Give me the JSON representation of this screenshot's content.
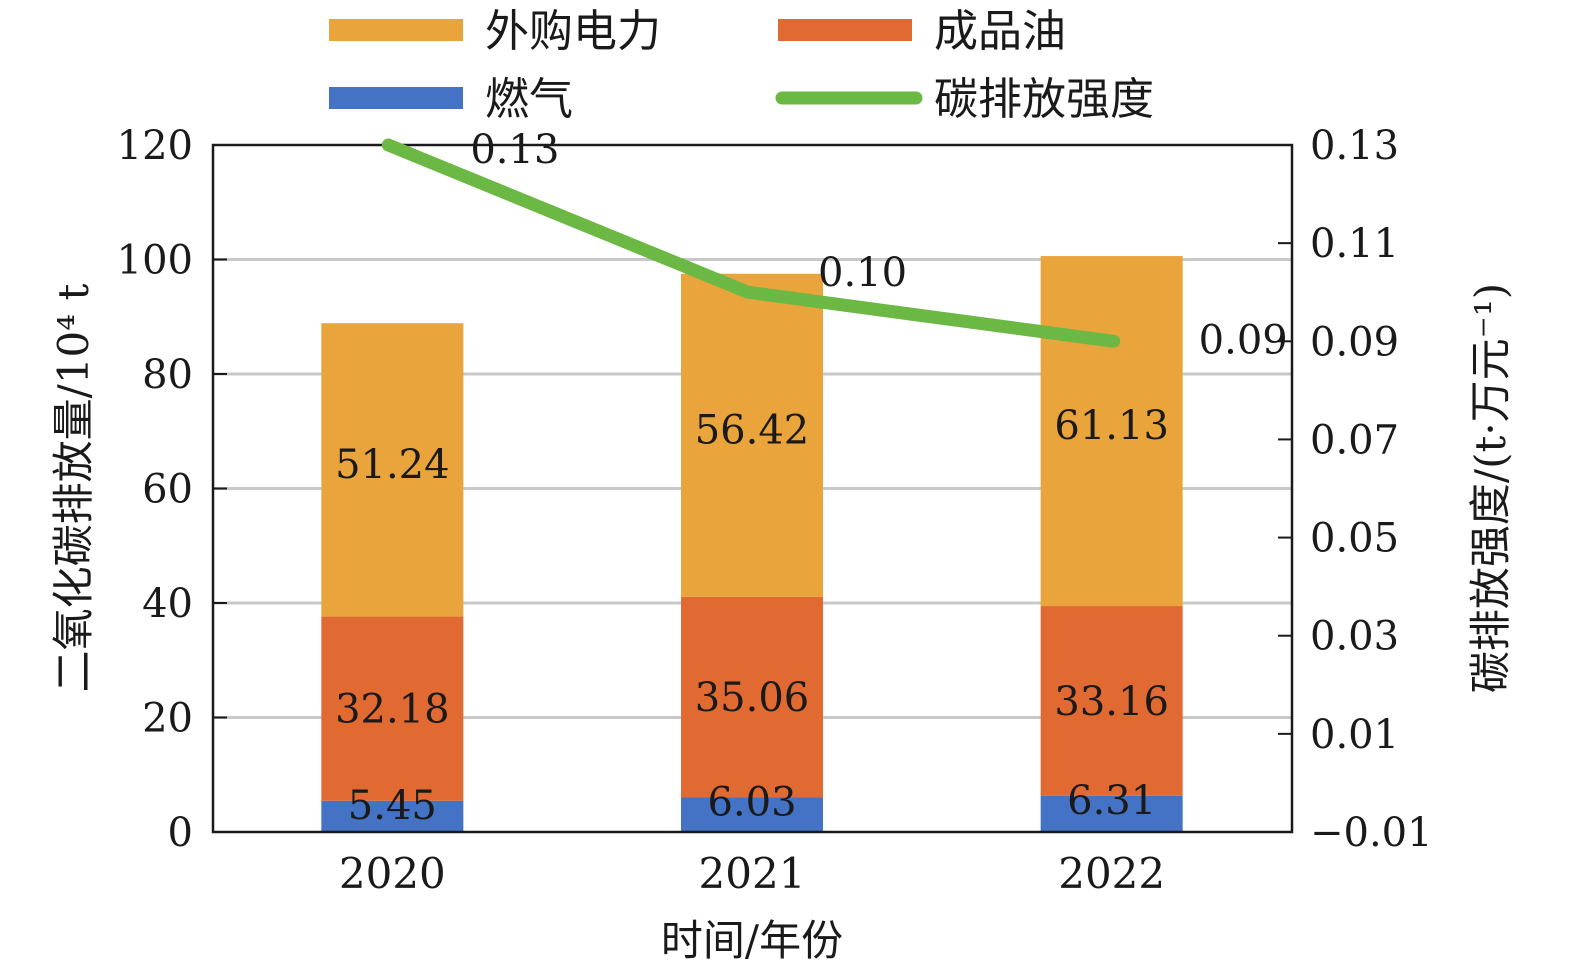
{
  "chart_data": {
    "type": "bar",
    "stacked": true,
    "categories": [
      "2020",
      "2021",
      "2022"
    ],
    "series": [
      {
        "name": "燃气",
        "values": [
          5.45,
          6.03,
          6.31
        ],
        "labels": [
          "5.45",
          "6.03",
          "6.31"
        ],
        "color": "#4472C4"
      },
      {
        "name": "成品油",
        "values": [
          32.18,
          35.06,
          33.16
        ],
        "labels": [
          "32.18",
          "35.06",
          "33.16"
        ],
        "color": "#E06A32"
      },
      {
        "name": "外购电力",
        "values": [
          51.24,
          56.42,
          61.13
        ],
        "labels": [
          "51.24",
          "56.42",
          "61.13"
        ],
        "color": "#E9A43C"
      }
    ],
    "line_series": {
      "name": "碳排放强度",
      "values": [
        0.13,
        0.1,
        0.09
      ],
      "labels": [
        "0.13",
        "0.10",
        "0.09"
      ],
      "color": "#6CB845",
      "axis": "right"
    },
    "legend_order": [
      "外购电力",
      "成品油",
      "燃气",
      "碳排放强度"
    ],
    "xlabel": "时间/年份",
    "ylabel": "二氧化碳排放量/10⁴ t",
    "ylabel_right": "碳排放强度/(t·万元⁻¹)",
    "ylim": [
      0,
      120
    ],
    "yticks": [
      "0",
      "20",
      "40",
      "60",
      "80",
      "100",
      "120"
    ],
    "ylim_right": [
      -0.01,
      0.13
    ],
    "yticks_right": [
      "−0.01",
      "0.01",
      "0.03",
      "0.05",
      "0.07",
      "0.09",
      "0.11",
      "0.13"
    ],
    "grid": true,
    "legend_position": "top"
  }
}
